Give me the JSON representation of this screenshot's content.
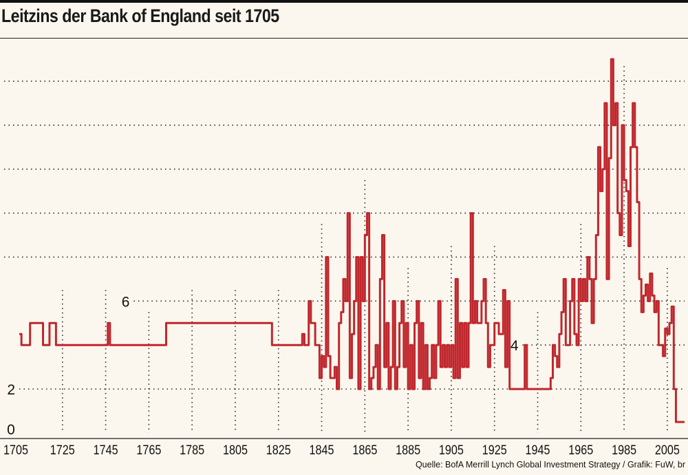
{
  "page": {
    "title": "Leitzins der Bank of England seit 1705",
    "source": "Quelle: BofA Merrill Lynch Global Investment Strategy / Grafik: FuW, br"
  },
  "colors": {
    "line": "#c0272d",
    "grid": "#222222",
    "background": "#fbf7ee"
  },
  "chart_data": {
    "type": "line",
    "title": "Leitzins der Bank of England seit 1705",
    "xlabel": "",
    "ylabel": "",
    "xlim": [
      1705,
      2013
    ],
    "ylim": [
      0,
      17
    ],
    "x_ticks": [
      1705,
      1725,
      1745,
      1765,
      1785,
      1805,
      1825,
      1845,
      1865,
      1885,
      1905,
      1925,
      1945,
      1965,
      1985,
      2005
    ],
    "y_ticks": [
      0,
      2,
      4,
      6,
      8,
      10,
      12,
      14,
      16
    ],
    "grid": "dotted",
    "legend": "none",
    "series": [
      {
        "name": "",
        "values_step": [
          [
            1705,
            4.5
          ],
          [
            1706,
            4
          ],
          [
            1710,
            5
          ],
          [
            1716,
            4
          ],
          [
            1719,
            5
          ],
          [
            1722,
            4
          ],
          [
            1746,
            5
          ],
          [
            1747,
            4
          ],
          [
            1773,
            5
          ],
          [
            1822,
            4
          ],
          [
            1836,
            4.5
          ],
          [
            1837,
            4
          ],
          [
            1839,
            6
          ],
          [
            1840,
            5
          ],
          [
            1842,
            4
          ],
          [
            1844,
            2.5
          ],
          [
            1845,
            3.5
          ],
          [
            1846,
            3
          ],
          [
            1847,
            8
          ],
          [
            1848,
            3.5
          ],
          [
            1849,
            2.5
          ],
          [
            1851,
            3
          ],
          [
            1852,
            2
          ],
          [
            1853,
            5
          ],
          [
            1854,
            5.5
          ],
          [
            1855,
            7
          ],
          [
            1856,
            6
          ],
          [
            1857,
            10
          ],
          [
            1858,
            2.5
          ],
          [
            1859,
            4.5
          ],
          [
            1860,
            6
          ],
          [
            1861,
            8
          ],
          [
            1862,
            2
          ],
          [
            1863,
            8
          ],
          [
            1864,
            6
          ],
          [
            1865,
            9
          ],
          [
            1866,
            10
          ],
          [
            1867,
            2
          ],
          [
            1868,
            2.5
          ],
          [
            1869,
            3
          ],
          [
            1870,
            4
          ],
          [
            1871,
            2
          ],
          [
            1872,
            7
          ],
          [
            1873,
            9
          ],
          [
            1874,
            3
          ],
          [
            1875,
            5
          ],
          [
            1876,
            2
          ],
          [
            1877,
            3
          ],
          [
            1878,
            6
          ],
          [
            1879,
            2
          ],
          [
            1880,
            3
          ],
          [
            1881,
            5
          ],
          [
            1882,
            6
          ],
          [
            1883,
            3
          ],
          [
            1884,
            5
          ],
          [
            1885,
            2
          ],
          [
            1886,
            4
          ],
          [
            1887,
            2
          ],
          [
            1888,
            5
          ],
          [
            1889,
            6
          ],
          [
            1890,
            2.5
          ],
          [
            1891,
            5
          ],
          [
            1892,
            2
          ],
          [
            1893,
            4
          ],
          [
            1894,
            2
          ],
          [
            1895,
            2.5
          ],
          [
            1896,
            4
          ],
          [
            1897,
            2.5
          ],
          [
            1898,
            4
          ],
          [
            1899,
            6
          ],
          [
            1900,
            3
          ],
          [
            1901,
            4
          ],
          [
            1902,
            3
          ],
          [
            1903,
            4
          ],
          [
            1904,
            3
          ],
          [
            1905,
            4
          ],
          [
            1906,
            2.5
          ],
          [
            1907,
            7
          ],
          [
            1908,
            2.5
          ],
          [
            1909,
            5
          ],
          [
            1910,
            3
          ],
          [
            1911,
            5
          ],
          [
            1912,
            3
          ],
          [
            1913,
            5
          ],
          [
            1914,
            10
          ],
          [
            1915,
            5
          ],
          [
            1916,
            6
          ],
          [
            1917,
            5
          ],
          [
            1919,
            6
          ],
          [
            1920,
            7
          ],
          [
            1921,
            5
          ],
          [
            1922,
            3
          ],
          [
            1923,
            4
          ],
          [
            1925,
            5
          ],
          [
            1927,
            4.5
          ],
          [
            1929,
            6.5
          ],
          [
            1930,
            3
          ],
          [
            1931,
            6
          ],
          [
            1932,
            2
          ],
          [
            1939,
            4
          ],
          [
            1940,
            2
          ],
          [
            1951,
            2.5
          ],
          [
            1952,
            4
          ],
          [
            1953,
            3.5
          ],
          [
            1954,
            3
          ],
          [
            1955,
            4.5
          ],
          [
            1956,
            5.5
          ],
          [
            1957,
            7
          ],
          [
            1958,
            4
          ],
          [
            1960,
            6
          ],
          [
            1961,
            7
          ],
          [
            1962,
            4.5
          ],
          [
            1963,
            4
          ],
          [
            1964,
            7
          ],
          [
            1965,
            6
          ],
          [
            1966,
            7
          ],
          [
            1967,
            6
          ],
          [
            1968,
            8
          ],
          [
            1969,
            7
          ],
          [
            1970,
            5
          ],
          [
            1971,
            7
          ],
          [
            1972,
            9
          ],
          [
            1973,
            13
          ],
          [
            1974,
            11
          ],
          [
            1975,
            12
          ],
          [
            1976,
            15
          ],
          [
            1977,
            7
          ],
          [
            1978,
            12.5
          ],
          [
            1979,
            17
          ],
          [
            1980,
            14
          ],
          [
            1981,
            15
          ],
          [
            1982,
            10
          ],
          [
            1983,
            9
          ],
          [
            1984,
            14
          ],
          [
            1985,
            11.5
          ],
          [
            1986,
            11
          ],
          [
            1987,
            8.5
          ],
          [
            1988,
            13
          ],
          [
            1989,
            15
          ],
          [
            1990,
            13
          ],
          [
            1991,
            10.5
          ],
          [
            1992,
            7
          ],
          [
            1993,
            5.5
          ],
          [
            1994,
            6.25
          ],
          [
            1995,
            6.75
          ],
          [
            1996,
            6
          ],
          [
            1997,
            7.25
          ],
          [
            1998,
            6.25
          ],
          [
            1999,
            5.5
          ],
          [
            2000,
            6
          ],
          [
            2001,
            4
          ],
          [
            2002,
            4
          ],
          [
            2003,
            3.5
          ],
          [
            2004,
            4.75
          ],
          [
            2005,
            4.5
          ],
          [
            2006,
            5
          ],
          [
            2007,
            5.75
          ],
          [
            2008,
            2
          ],
          [
            2009,
            0.5
          ],
          [
            2013,
            0.5
          ]
        ]
      }
    ]
  }
}
